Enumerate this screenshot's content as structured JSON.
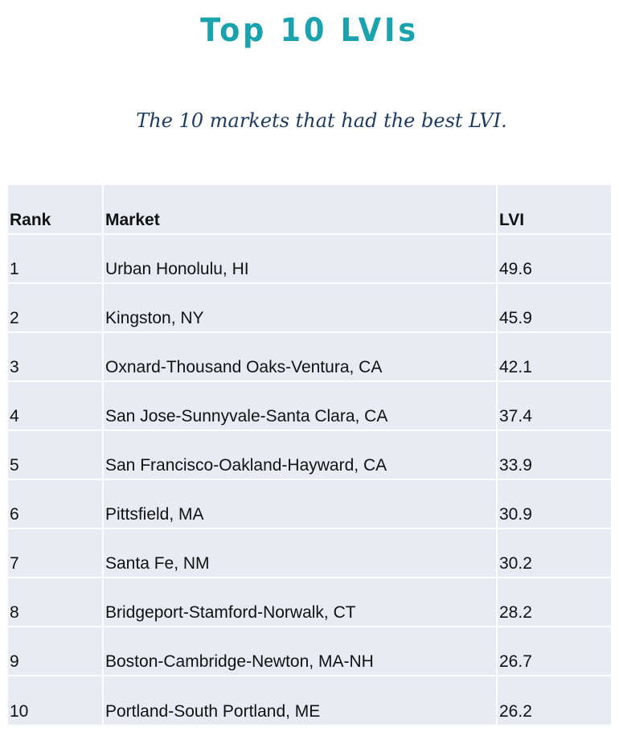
{
  "title": "Top 10 LVIs",
  "subtitle": "The 10 markets that had the best LVI.",
  "table": {
    "headers": {
      "rank": "Rank",
      "market": "Market",
      "lvi": "LVI"
    },
    "rows": [
      {
        "rank": "1",
        "market": "Urban Honolulu, HI",
        "lvi": "49.6"
      },
      {
        "rank": "2",
        "market": "Kingston, NY",
        "lvi": "45.9"
      },
      {
        "rank": "3",
        "market": "Oxnard-Thousand Oaks-Ventura, CA",
        "lvi": "42.1"
      },
      {
        "rank": "4",
        "market": "San Jose-Sunnyvale-Santa Clara, CA",
        "lvi": "37.4"
      },
      {
        "rank": "5",
        "market": "San Francisco-Oakland-Hayward, CA",
        "lvi": "33.9"
      },
      {
        "rank": "6",
        "market": "Pittsfield, MA",
        "lvi": "30.9"
      },
      {
        "rank": "7",
        "market": "Santa Fe, NM",
        "lvi": "30.2"
      },
      {
        "rank": "8",
        "market": "Bridgeport-Stamford-Norwalk, CT",
        "lvi": "28.2"
      },
      {
        "rank": "9",
        "market": "Boston-Cambridge-Newton, MA-NH",
        "lvi": "26.7"
      },
      {
        "rank": "10",
        "market": "Portland-South Portland, ME",
        "lvi": "26.2"
      }
    ]
  }
}
